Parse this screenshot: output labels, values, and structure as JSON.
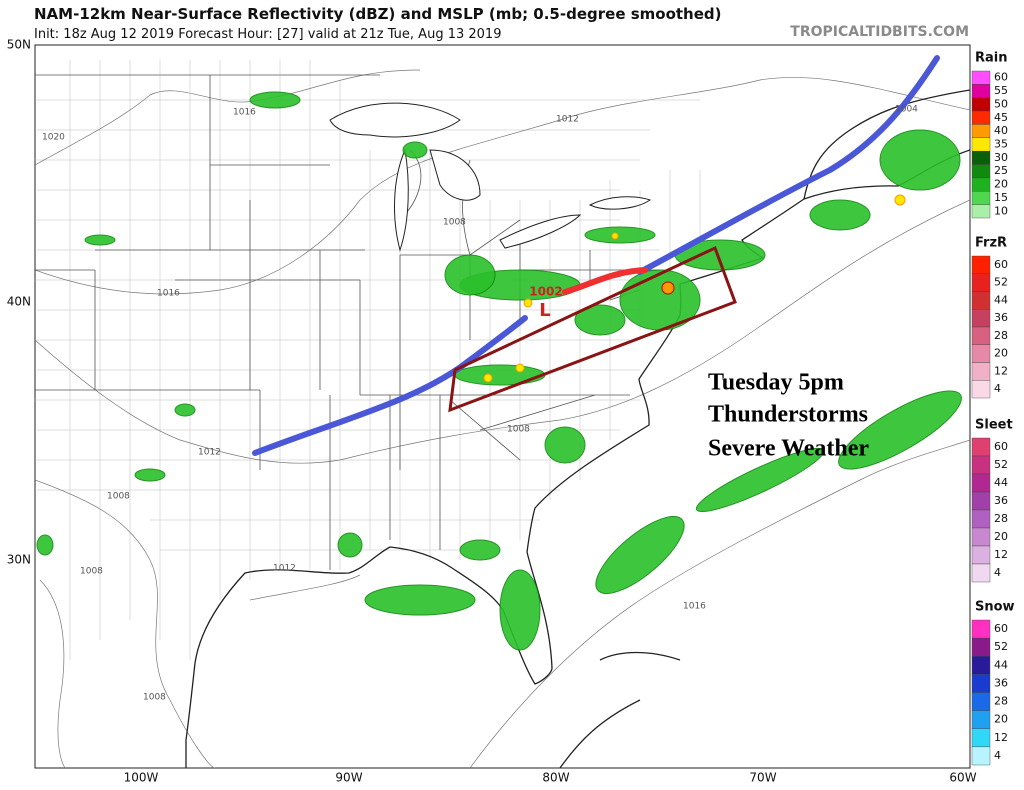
{
  "header": {
    "title": "NAM-12km Near-Surface Reflectivity (dBZ) and MSLP (mb; 0.5-degree smoothed)",
    "subtitle": "Init: 18z Aug 12 2019   Forecast Hour: [27]   valid at 21z Tue, Aug 13 2019",
    "credit": "TROPICALTIDBITS.COM"
  },
  "map": {
    "lat_labels": [
      "50N",
      "40N",
      "30N"
    ],
    "lon_labels": [
      "100W",
      "90W",
      "80W",
      "70W",
      "60W"
    ],
    "isobar_labels": [
      "1016",
      "1020",
      "1016",
      "1012",
      "1008",
      "1004",
      "1008",
      "1012",
      "1008",
      "1008",
      "1012",
      "1016",
      "1008"
    ],
    "low": {
      "pressure": "1002",
      "symbol": "L"
    },
    "annotation": [
      "Tuesday 5pm",
      "Thunderstorms",
      "Severe Weather"
    ]
  },
  "legends": [
    {
      "name": "Rain",
      "labels": [
        60,
        55,
        50,
        45,
        40,
        35,
        30,
        25,
        20,
        15,
        10
      ],
      "colors": [
        "#ff4dff",
        "#e000a0",
        "#c00000",
        "#ff2a00",
        "#ff9a00",
        "#ffe800",
        "#0a5f0a",
        "#0f8a0f",
        "#1fb21f",
        "#4fd84f",
        "#a8f0a8"
      ]
    },
    {
      "name": "FrzR",
      "labels": [
        60,
        52,
        44,
        36,
        28,
        20,
        12,
        4
      ],
      "colors": [
        "#ff2000",
        "#e82020",
        "#d03030",
        "#c84060",
        "#d86080",
        "#e888a8",
        "#f0b0c8",
        "#fad8e6"
      ]
    },
    {
      "name": "Sleet",
      "labels": [
        60,
        52,
        44,
        36,
        28,
        20,
        12,
        4
      ],
      "colors": [
        "#e04070",
        "#c83080",
        "#b02890",
        "#a040a8",
        "#b060c0",
        "#c888d0",
        "#dcb0e0",
        "#f0d8f0"
      ]
    },
    {
      "name": "Snow",
      "labels": [
        60,
        52,
        44,
        36,
        28,
        20,
        12,
        4
      ],
      "colors": [
        "#ff30c0",
        "#8a1a8a",
        "#2a1a9a",
        "#1a3ad0",
        "#1a6ae8",
        "#20a0f0",
        "#30d8f8",
        "#b8f4ff"
      ]
    }
  ]
}
